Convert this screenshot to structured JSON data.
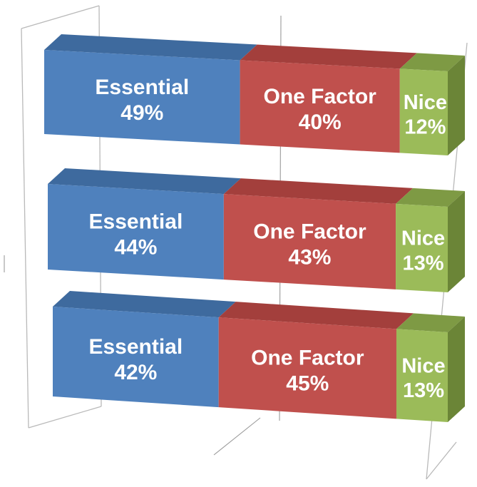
{
  "chart_data": {
    "type": "bar",
    "orientation": "horizontal",
    "stacking": "percent",
    "three_d": true,
    "grid": true,
    "categories": [
      "",
      "",
      ""
    ],
    "series": [
      {
        "name": "Essential",
        "values": [
          49,
          44,
          42
        ],
        "labels": [
          "Essential\n49%",
          "Essential\n44%",
          "Essential\n42%"
        ]
      },
      {
        "name": "One Factor",
        "values": [
          40,
          43,
          45
        ],
        "labels": [
          "One Factor\n40%",
          "One Factor\n43%",
          "One Factor\n45%"
        ]
      },
      {
        "name": "Nice",
        "values": [
          12,
          13,
          13
        ],
        "labels": [
          "Nice\n12%",
          "Nice\n13%",
          "Nice\n13%"
        ]
      }
    ],
    "xlim": [
      0,
      100
    ],
    "colors": {
      "Essential": {
        "front": "#4f81bd",
        "top": "#3e6a9e",
        "side": "#35598a"
      },
      "One Factor": {
        "front": "#c0504d",
        "top": "#a33f3c",
        "side": "#8c3533"
      },
      "Nice": {
        "front": "#9bbb59",
        "top": "#7e9a44",
        "side": "#6b8537"
      }
    }
  }
}
